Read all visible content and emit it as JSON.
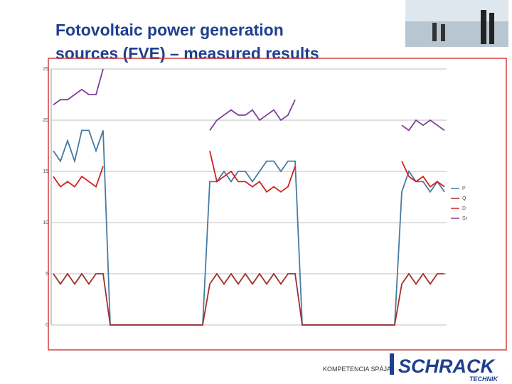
{
  "slide": {
    "title_lines": [
      "Fotovoltaic power generation",
      "sources (FVE) – measured results"
    ],
    "tagline": "KOMPETENCIA SPÁJA",
    "logo": "SCHRACK",
    "logo_sub": "TECHNIK"
  },
  "chart_data": {
    "type": "line",
    "categories": [
      null,
      null,
      null,
      null,
      null,
      null,
      null,
      null,
      null,
      null,
      null,
      null,
      null,
      null,
      null,
      null,
      null,
      null,
      null,
      null,
      null,
      null,
      null,
      null,
      null,
      null,
      null,
      null,
      null,
      null,
      null,
      null,
      null,
      null,
      null,
      null,
      null,
      null,
      null,
      null,
      null,
      null,
      null,
      null,
      null,
      null,
      null,
      null,
      null,
      null,
      null,
      null,
      null,
      null,
      null,
      null
    ],
    "ylim": [
      0,
      25
    ],
    "yticks": [
      0,
      5,
      10,
      15,
      20,
      25
    ],
    "grid": true,
    "legend": "right",
    "series": [
      {
        "name": "P",
        "color": "#4a7aa0",
        "values": [
          17,
          16,
          18,
          16,
          19,
          19,
          17,
          19,
          0,
          0,
          0,
          0,
          0,
          0,
          0,
          0,
          0,
          0,
          0,
          0,
          0,
          0,
          14,
          14,
          15,
          14,
          15,
          15,
          14,
          15,
          16,
          16,
          15,
          16,
          16,
          0,
          0,
          0,
          0,
          0,
          0,
          0,
          0,
          0,
          0,
          0,
          0,
          0,
          0,
          13,
          15,
          14,
          14,
          13,
          14,
          13
        ]
      },
      {
        "name": "Q",
        "color": "#a03030",
        "values": [
          5,
          4,
          5,
          4,
          5,
          4,
          5,
          5,
          0,
          0,
          0,
          0,
          0,
          0,
          0,
          0,
          0,
          0,
          0,
          0,
          0,
          0,
          4,
          5,
          4,
          5,
          4,
          5,
          4,
          5,
          4,
          5,
          4,
          5,
          5,
          0,
          0,
          0,
          0,
          0,
          0,
          0,
          0,
          0,
          0,
          0,
          0,
          0,
          0,
          4,
          5,
          4,
          5,
          4,
          5,
          5
        ]
      },
      {
        "name": "D",
        "color": "#d42020",
        "values": [
          14.5,
          13.5,
          14,
          13.5,
          14.5,
          14,
          13.5,
          15.5,
          null,
          null,
          null,
          null,
          null,
          null,
          null,
          null,
          null,
          null,
          null,
          null,
          null,
          null,
          17,
          14,
          14.5,
          15,
          14,
          14,
          13.5,
          14,
          13,
          13.5,
          13,
          13.5,
          15.5,
          null,
          null,
          null,
          null,
          null,
          null,
          null,
          null,
          null,
          null,
          null,
          null,
          null,
          null,
          16,
          14.5,
          14,
          14.5,
          13.5,
          14,
          13.5
        ]
      },
      {
        "name": "Sr",
        "color": "#7d3f98",
        "values": [
          21.5,
          22,
          22,
          22.5,
          23,
          22.5,
          22.5,
          25,
          null,
          null,
          null,
          null,
          null,
          null,
          null,
          null,
          null,
          null,
          null,
          null,
          null,
          null,
          19,
          20,
          20.5,
          21,
          20.5,
          20.5,
          21,
          20,
          20.5,
          21,
          20,
          20.5,
          22,
          null,
          null,
          null,
          null,
          null,
          null,
          null,
          null,
          null,
          null,
          null,
          null,
          null,
          null,
          19.5,
          19,
          20,
          19.5,
          20,
          19.5,
          19
        ]
      }
    ]
  }
}
